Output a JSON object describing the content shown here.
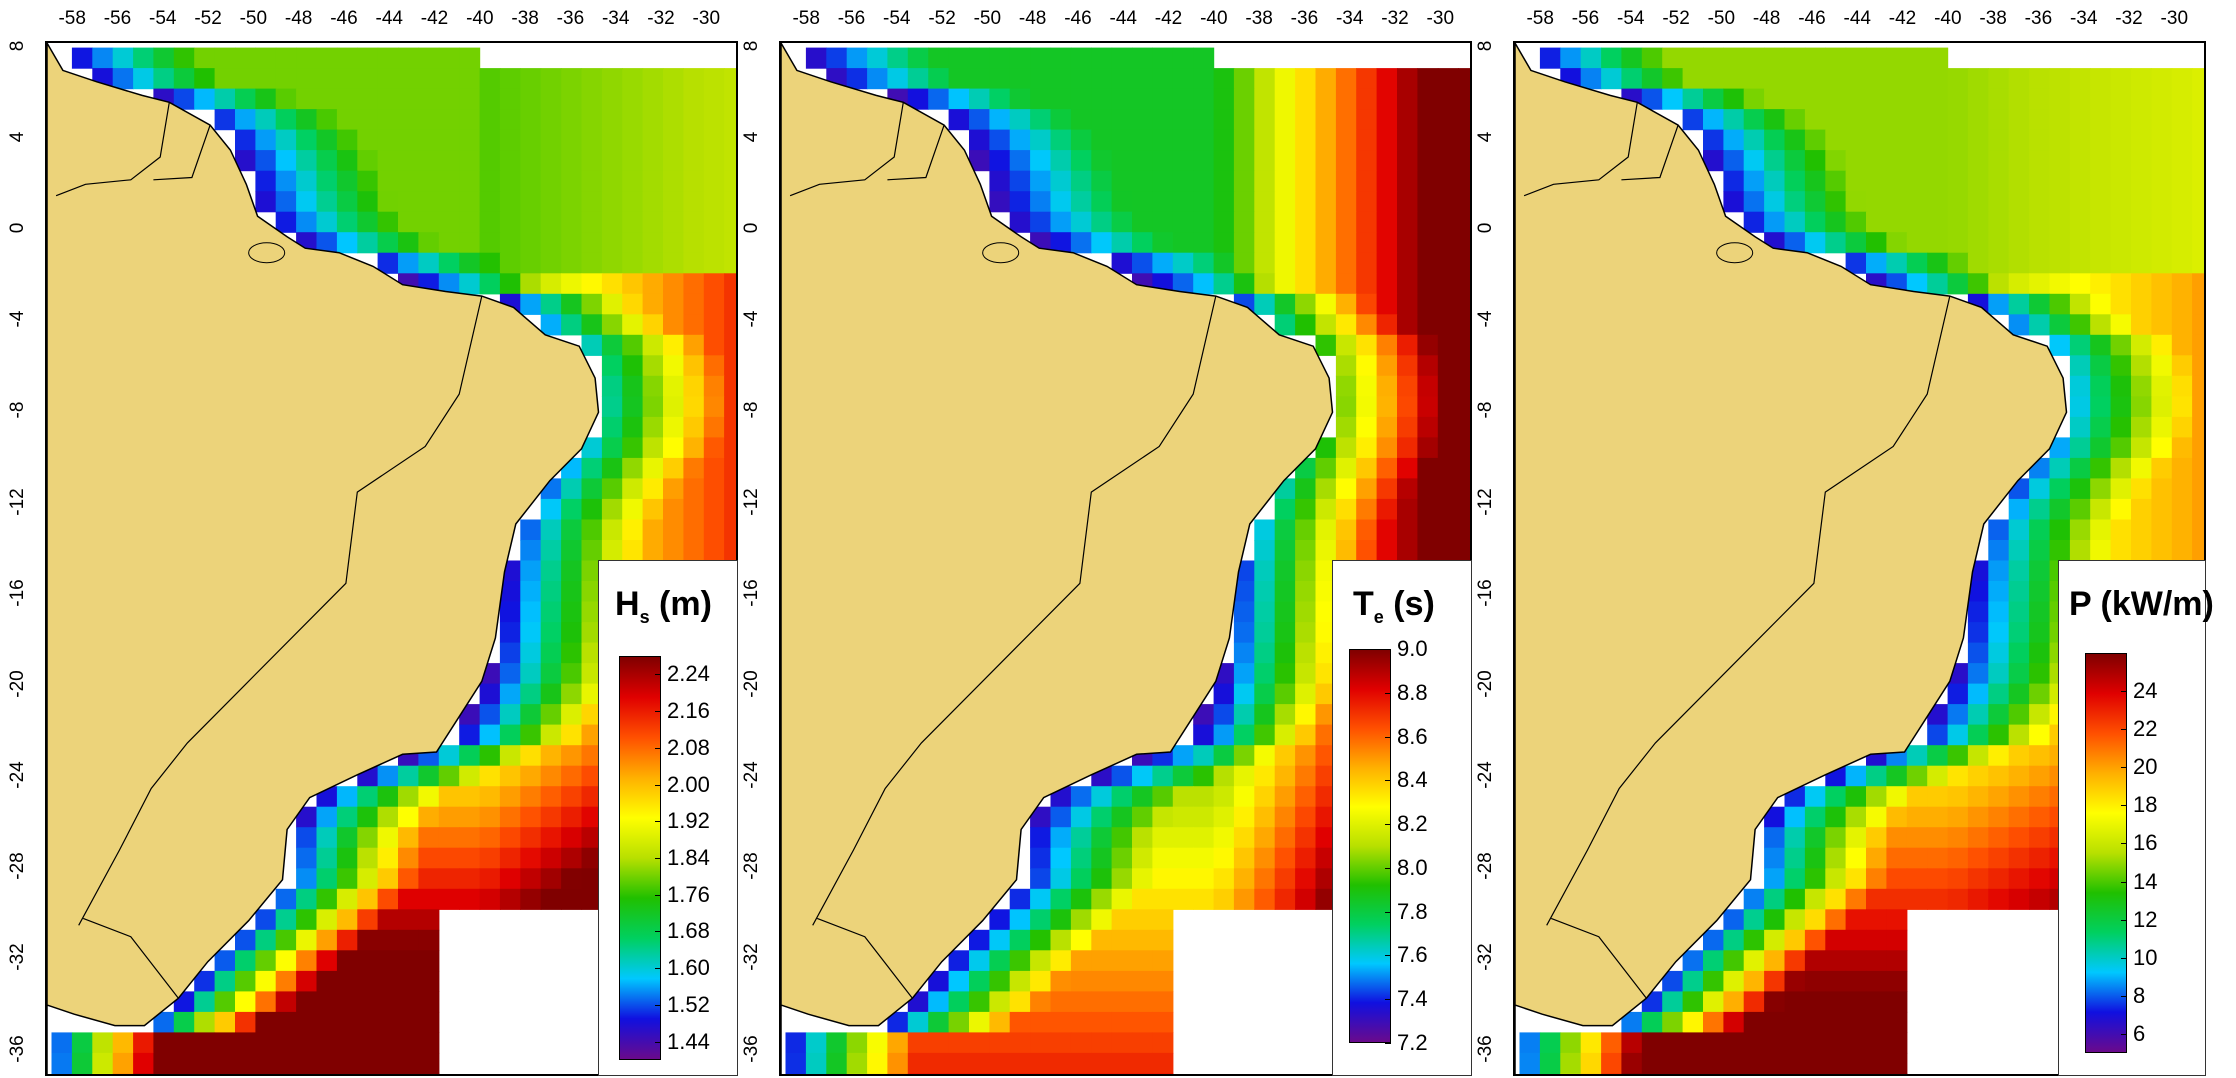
{
  "figure": {
    "x_ticks": [
      "-58",
      "-56",
      "-54",
      "-52",
      "-50",
      "-48",
      "-46",
      "-44",
      "-42",
      "-40",
      "-38",
      "-36",
      "-34",
      "-32",
      "-30"
    ],
    "y_ticks": [
      "8",
      "4",
      "0",
      "-4",
      "-8",
      "-12",
      "-16",
      "-20",
      "-24",
      "-28",
      "-32",
      "-36"
    ],
    "x_range": [
      -59.2,
      -28.6
    ],
    "y_range": [
      -37.2,
      8.2
    ],
    "land_color": "#ecd37a",
    "colormap": [
      "#6a0a8c",
      "#1010e0",
      "#00c8ff",
      "#00d060",
      "#20c000",
      "#b8e000",
      "#ffff00",
      "#ffb000",
      "#ff5000",
      "#e00000",
      "#800000"
    ]
  },
  "panels": [
    {
      "id": "hs",
      "legend_main": "H",
      "legend_sub": "s",
      "legend_unit": "(m)",
      "cbar_labels": [
        "2.24",
        "2.16",
        "2.08",
        "2.00",
        "1.92",
        "1.84",
        "1.76",
        "1.68",
        "1.60",
        "1.52",
        "1.44"
      ],
      "cbar_range": [
        1.4,
        2.28
      ]
    },
    {
      "id": "te",
      "legend_main": "T",
      "legend_sub": "e",
      "legend_unit": "(s)",
      "cbar_labels": [
        "9.0",
        "8.8",
        "8.6",
        "8.4",
        "8.2",
        "8.0",
        "7.8",
        "7.6",
        "7.4",
        "7.2"
      ],
      "cbar_range": [
        7.2,
        9.0
      ]
    },
    {
      "id": "p",
      "legend_main": "P (kW/m)",
      "legend_sub": "",
      "legend_unit": "",
      "cbar_labels": [
        "24",
        "22",
        "20",
        "18",
        "16",
        "14",
        "12",
        "10",
        "8",
        "6"
      ],
      "cbar_range": [
        5,
        26
      ]
    }
  ]
}
